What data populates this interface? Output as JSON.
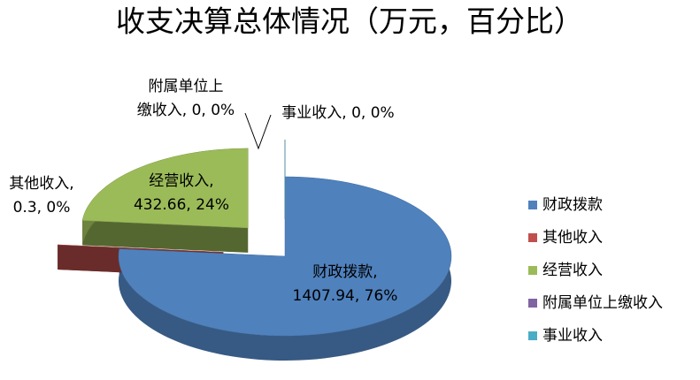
{
  "chart_data": {
    "type": "pie",
    "title": "收支决算总体情况（万元，百分比）",
    "categories": [
      "财政拨款",
      "其他收入",
      "经营收入",
      "附属单位上缴收入",
      "事业收入"
    ],
    "values": [
      1407.94,
      0.3,
      432.66,
      0,
      0
    ],
    "value_labels": [
      [
        "财政拨款,",
        "1407.94, 76%"
      ],
      [
        "其他收入,",
        "0.3, 0%"
      ],
      [
        "经营收入,",
        "432.66, 24%"
      ],
      [
        "附属单位上",
        "缴收入, 0, 0%"
      ],
      [
        "事业收入, 0, 0%"
      ]
    ],
    "colors": [
      "#4f81bd",
      "#c0504d",
      "#9bbb59",
      "#8064a2",
      "#4bacc6"
    ],
    "legend": "right"
  }
}
